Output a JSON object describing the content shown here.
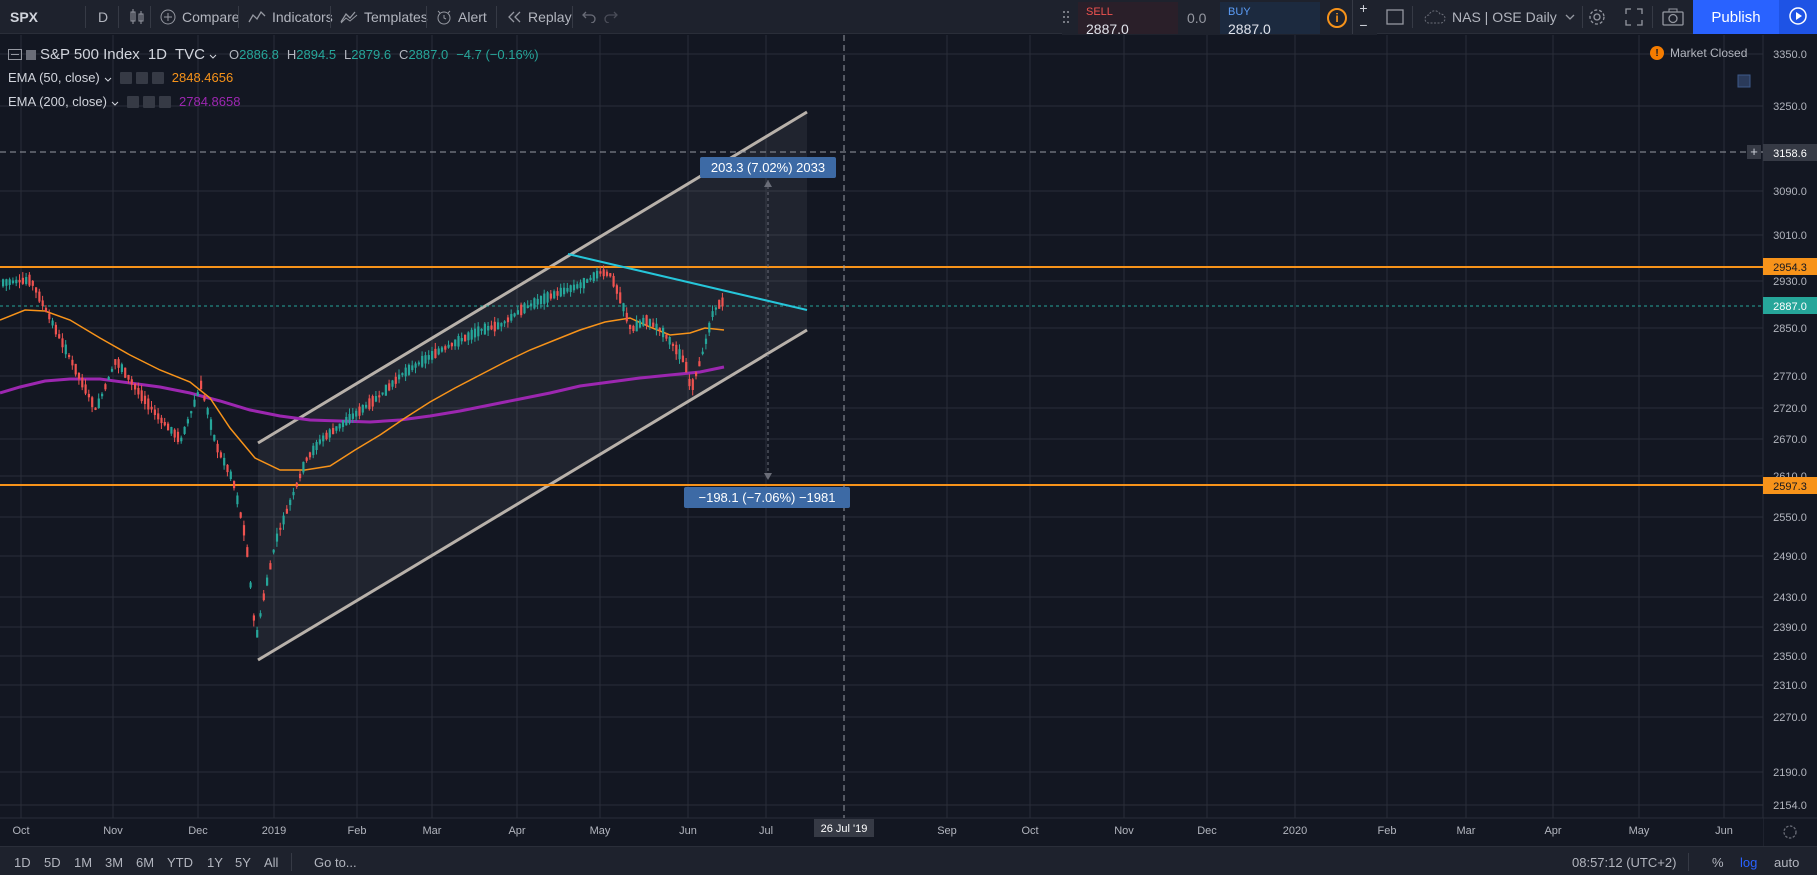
{
  "toolbar": {
    "symbol": "SPX",
    "interval": "D",
    "compare": "Compare",
    "indicators": "Indicators",
    "templates": "Templates",
    "alert": "Alert",
    "replay": "Replay",
    "sell_label": "SELL",
    "sell_value": "2887.0",
    "spread": "0.0",
    "buy_label": "BUY",
    "buy_value": "2887.0",
    "info_icon_text": "i",
    "plus": "+",
    "minus": "−",
    "layout_name": "NAS | OSE Daily",
    "publish": "Publish"
  },
  "legend": {
    "symbol_name": "S&P 500 Index",
    "interval": "1D",
    "source": "TVC",
    "o_label": "O",
    "o": "2886.8",
    "h_label": "H",
    "h": "2894.5",
    "l_label": "L",
    "l": "2879.6",
    "c_label": "C",
    "c": "2887.0",
    "change": "−4.7 (−0.16%)",
    "ema50_label": "EMA (50, close)",
    "ema50_value": "2848.4656",
    "ema200_label": "EMA (200, close)",
    "ema200_value": "2784.8658",
    "market_status": "Market Closed"
  },
  "colors": {
    "background": "#131722",
    "grid": "#2a2e39",
    "up": "#26a69a",
    "down": "#ef5350",
    "ema50": "#f7931a",
    "ema200": "#9c27b0",
    "horizontal_levels": "#f7931a",
    "channel": "#b8b1aa",
    "trendline": "#26c6da",
    "last_price": "#26a69a",
    "measure_label": "#3d6aa5"
  },
  "chart_data": {
    "type": "candlestick",
    "price_axis_ticks": [
      "3350.0",
      "3250.0",
      "3090.0",
      "3010.0",
      "2930.0",
      "2850.0",
      "2770.0",
      "2720.0",
      "2670.0",
      "2610.0",
      "2550.0",
      "2490.0",
      "2430.0",
      "2390.0",
      "2350.0",
      "2310.0",
      "2270.0",
      "2190.0",
      "2154.0"
    ],
    "time_axis_ticks": [
      "Oct",
      "Nov",
      "Dec",
      "2019",
      "Feb",
      "Mar",
      "Apr",
      "May",
      "Jun",
      "Jul",
      "Sep",
      "Oct",
      "Nov",
      "Dec",
      "2020",
      "Feb",
      "Mar",
      "Apr",
      "May",
      "Jun"
    ],
    "crosshair_price": "3158.6",
    "crosshair_date": "26 Jul '19",
    "level_upper": "2954.3",
    "level_lower": "2597.3",
    "last_price": "2887.0",
    "measure_up": "203.3 (7.02%) 2033",
    "measure_down": "−198.1 (−7.06%) −1981",
    "scale_mode": "log"
  },
  "bottombar": {
    "ranges": [
      "1D",
      "5D",
      "1M",
      "3M",
      "6M",
      "YTD",
      "1Y",
      "5Y",
      "All"
    ],
    "goto": "Go to...",
    "time": "08:57:12 (UTC+2)",
    "percent": "%",
    "log": "log",
    "auto": "auto"
  }
}
